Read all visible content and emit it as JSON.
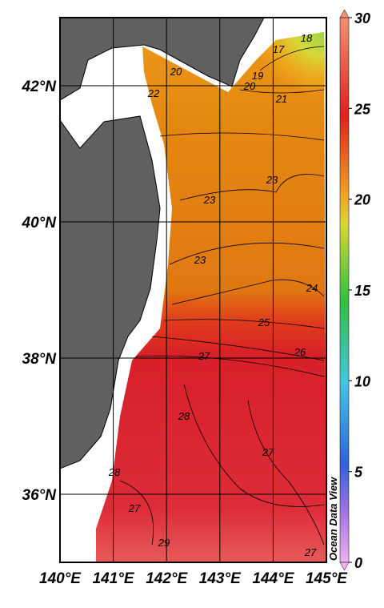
{
  "map": {
    "lon_ticks": [
      {
        "value": 140,
        "label": "140°E"
      },
      {
        "value": 141,
        "label": "141°E"
      },
      {
        "value": 142,
        "label": "142°E"
      },
      {
        "value": 143,
        "label": "143°E"
      },
      {
        "value": 144,
        "label": "144°E"
      },
      {
        "value": 145,
        "label": "145°E"
      }
    ],
    "lat_ticks": [
      {
        "value": 42,
        "label": "42°N"
      },
      {
        "value": 40,
        "label": "40°N"
      },
      {
        "value": 38,
        "label": "38°N"
      },
      {
        "value": 36,
        "label": "36°N"
      }
    ],
    "lon_range": [
      140,
      145
    ],
    "lat_range": [
      35,
      43
    ],
    "contour_labels": [
      "18",
      "17",
      "19",
      "20",
      "20",
      "21",
      "22",
      "23",
      "23",
      "23",
      "24",
      "25",
      "26",
      "27",
      "28",
      "27",
      "28",
      "27",
      "29",
      "27"
    ],
    "watermark": "Ocean Data View"
  },
  "colorbar": {
    "range": [
      0,
      30
    ],
    "ticks": [
      0,
      5,
      10,
      15,
      20,
      25,
      30
    ]
  }
}
